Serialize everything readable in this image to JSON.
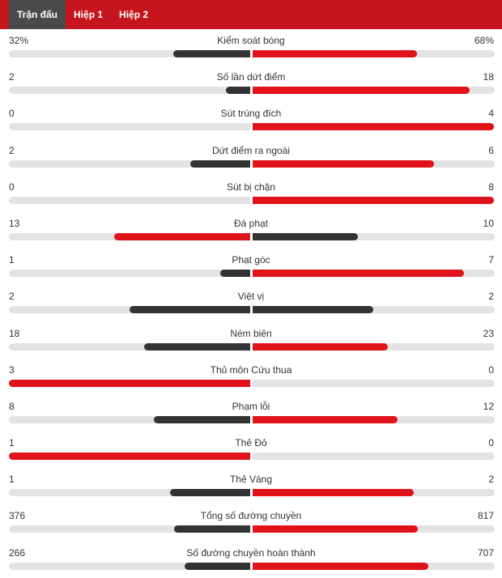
{
  "tabs": [
    {
      "label": "Trận đấu",
      "active": true
    },
    {
      "label": "Hiệp 1",
      "active": false
    },
    {
      "label": "Hiệp 2",
      "active": false
    }
  ],
  "colors": {
    "header_bg": "#c4161c",
    "active_tab_bg": "#4a4a4a",
    "leader": "#e0121a",
    "trailer": "#333333",
    "track": "#e3e3e3"
  },
  "stats": [
    {
      "name": "Kiểm soát bóng",
      "home": "32%",
      "away": "68%",
      "home_value": 32,
      "away_value": 68
    },
    {
      "name": "Số lần dứt điểm",
      "home": "2",
      "away": "18",
      "home_value": 2,
      "away_value": 18
    },
    {
      "name": "Sút trúng đích",
      "home": "0",
      "away": "4",
      "home_value": 0,
      "away_value": 4
    },
    {
      "name": "Dứt điểm ra ngoài",
      "home": "2",
      "away": "6",
      "home_value": 2,
      "away_value": 6
    },
    {
      "name": "Sút bị chặn",
      "home": "0",
      "away": "8",
      "home_value": 0,
      "away_value": 8
    },
    {
      "name": "Đá phạt",
      "home": "13",
      "away": "10",
      "home_value": 13,
      "away_value": 10
    },
    {
      "name": "Phạt góc",
      "home": "1",
      "away": "7",
      "home_value": 1,
      "away_value": 7
    },
    {
      "name": "Việt vị",
      "home": "2",
      "away": "2",
      "home_value": 2,
      "away_value": 2
    },
    {
      "name": "Ném biên",
      "home": "18",
      "away": "23",
      "home_value": 18,
      "away_value": 23
    },
    {
      "name": "Thủ môn Cứu thua",
      "home": "3",
      "away": "0",
      "home_value": 3,
      "away_value": 0
    },
    {
      "name": "Phạm lỗi",
      "home": "8",
      "away": "12",
      "home_value": 8,
      "away_value": 12
    },
    {
      "name": "Thẻ Đỏ",
      "home": "1",
      "away": "0",
      "home_value": 1,
      "away_value": 0
    },
    {
      "name": "Thẻ Vàng",
      "home": "1",
      "away": "2",
      "home_value": 1,
      "away_value": 2
    },
    {
      "name": "Tổng số đường chuyền",
      "home": "376",
      "away": "817",
      "home_value": 376,
      "away_value": 817
    },
    {
      "name": "Số đường chuyền hoàn thành",
      "home": "266",
      "away": "707",
      "home_value": 266,
      "away_value": 707
    }
  ]
}
